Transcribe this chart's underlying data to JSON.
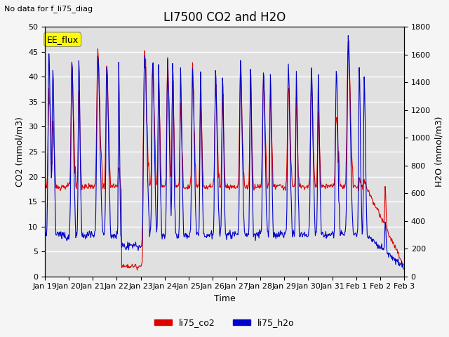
{
  "title": "LI7500 CO2 and H2O",
  "subtitle": "No data for f_li75_diag",
  "xlabel": "Time",
  "ylabel_left": "CO2 (mmol/m3)",
  "ylabel_right": "H2O (mmol/m3)",
  "co2_color": "#dd0000",
  "h2o_color": "#0000cc",
  "ylim_left": [
    0,
    50
  ],
  "ylim_right": [
    0,
    1800
  ],
  "legend_labels": [
    "li75_co2",
    "li75_h2o"
  ],
  "annotation_box": "EE_flux",
  "annotation_color": "#ffff00",
  "background_color": "#e0e0e0",
  "grid_color": "#ffffff",
  "title_fontsize": 12,
  "axis_fontsize": 9,
  "tick_fontsize": 8,
  "figsize": [
    6.4,
    4.8
  ],
  "dpi": 100
}
